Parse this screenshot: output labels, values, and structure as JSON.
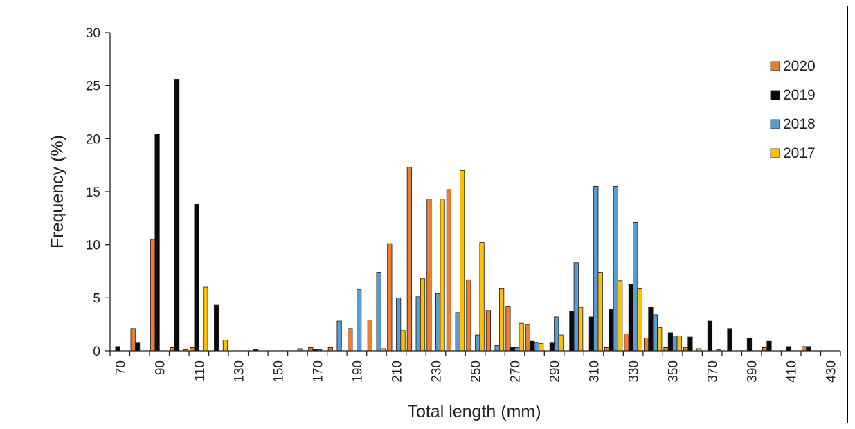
{
  "chart_data": {
    "type": "bar",
    "xlabel": "Total length (mm)",
    "ylabel": "Frequency (%)",
    "ylim": [
      0,
      30
    ],
    "yticks": [
      "0",
      "5",
      "10",
      "15",
      "20",
      "25",
      "30"
    ],
    "x_tick_labels": [
      "70",
      "90",
      "110",
      "130",
      "150",
      "170",
      "190",
      "210",
      "230",
      "250",
      "270",
      "290",
      "310",
      "330",
      "350",
      "370",
      "390",
      "410",
      "430"
    ],
    "categories": [
      70,
      80,
      90,
      100,
      110,
      120,
      130,
      140,
      150,
      160,
      170,
      180,
      190,
      200,
      210,
      220,
      230,
      240,
      250,
      260,
      270,
      280,
      290,
      300,
      310,
      320,
      330,
      340,
      350,
      360,
      370,
      380,
      390,
      400,
      410,
      420
    ],
    "legend_position": "top-right",
    "grid": false,
    "series": [
      {
        "name": "2020",
        "color": "#ED7D31",
        "values": [
          0,
          2.1,
          10.5,
          0.3,
          0.3,
          0,
          0,
          0,
          0,
          0,
          0.3,
          0.3,
          2.1,
          2.9,
          10.1,
          17.3,
          14.3,
          15.2,
          6.7,
          3.8,
          4.2,
          2.5,
          0,
          0,
          0,
          0.3,
          1.6,
          1.2,
          0.3,
          0.3,
          0,
          0,
          0,
          0.3,
          0,
          0.4
        ]
      },
      {
        "name": "2019",
        "color": "#0A0A0A",
        "values": [
          0.4,
          0.8,
          20.4,
          25.6,
          13.8,
          4.3,
          0,
          0.1,
          0,
          0,
          0.1,
          0,
          0,
          0,
          0,
          0,
          0,
          0,
          0,
          0,
          0.3,
          0.9,
          0.8,
          3.7,
          3.2,
          3.9,
          6.3,
          4.1,
          1.7,
          1.3,
          2.8,
          2.1,
          1.2,
          0.9,
          0.4,
          0.4
        ]
      },
      {
        "name": "2018",
        "color": "#5B9BD5",
        "values": [
          0,
          0,
          0,
          0,
          0,
          0,
          0,
          0,
          0,
          0.2,
          0.1,
          2.8,
          5.8,
          7.4,
          5.0,
          5.1,
          5.4,
          3.6,
          1.5,
          0.5,
          0.3,
          0.8,
          3.2,
          8.3,
          15.5,
          15.5,
          12.1,
          3.4,
          1.4,
          0,
          0,
          0,
          0,
          0,
          0,
          0
        ]
      },
      {
        "name": "2017",
        "color": "#FFC000",
        "values": [
          0,
          0,
          0,
          0.1,
          6.0,
          1.0,
          0,
          0,
          0,
          0,
          0,
          0,
          0,
          0.2,
          1.9,
          6.8,
          14.3,
          17.0,
          10.2,
          5.9,
          2.6,
          0.7,
          1.5,
          4.1,
          7.4,
          6.6,
          5.9,
          2.2,
          1.4,
          0.2,
          0.1,
          0,
          0,
          0,
          0,
          0
        ]
      }
    ]
  }
}
